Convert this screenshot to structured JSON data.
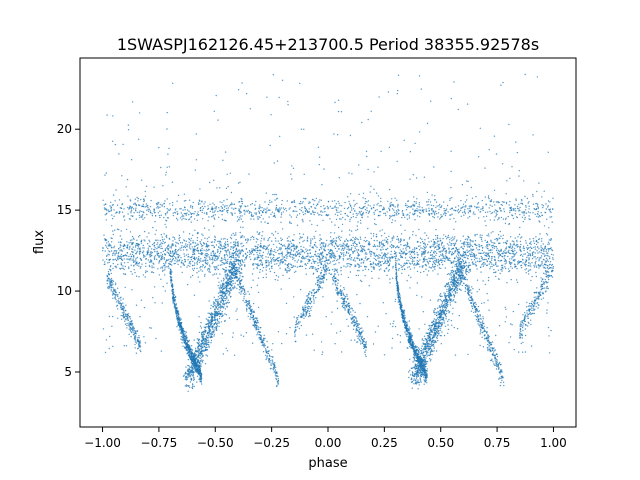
{
  "chart_data": {
    "type": "scatter",
    "title": "1SWASPJ162126.45+213700.5 Period 38355.92578s",
    "xlabel": "phase",
    "ylabel": "flux",
    "xlim": [
      -1.1,
      1.1
    ],
    "ylim": [
      1.6,
      24.4
    ],
    "x_ticks": [
      -1.0,
      -0.75,
      -0.5,
      -0.25,
      0.0,
      0.25,
      0.5,
      0.75,
      1.0
    ],
    "x_tick_labels": [
      "−1.00",
      "−0.75",
      "−0.50",
      "−0.25",
      "0.00",
      "0.25",
      "0.50",
      "0.75",
      "1.00"
    ],
    "y_ticks": [
      5,
      10,
      15,
      20
    ],
    "y_tick_labels": [
      "5",
      "10",
      "15",
      "20"
    ],
    "grid": false,
    "legend": "none",
    "marker_color": "#1f77b4",
    "phase_range": [
      -1.0,
      1.0
    ],
    "period_folded": true,
    "bands": [
      {
        "flux": 15.0,
        "spread": 0.35
      },
      {
        "flux": 12.5,
        "spread": 0.55
      },
      {
        "flux": 11.6,
        "spread": 0.35
      }
    ],
    "dips": [
      {
        "phase_min": 0.3,
        "phase_max": 0.55,
        "flux_min": 4.5,
        "flux_max": 12.0
      },
      {
        "phase_min": 0.55,
        "phase_max": 0.8,
        "flux_min": 4.5,
        "flux_max": 12.0
      }
    ],
    "outlier_flux_max": 23.4
  }
}
